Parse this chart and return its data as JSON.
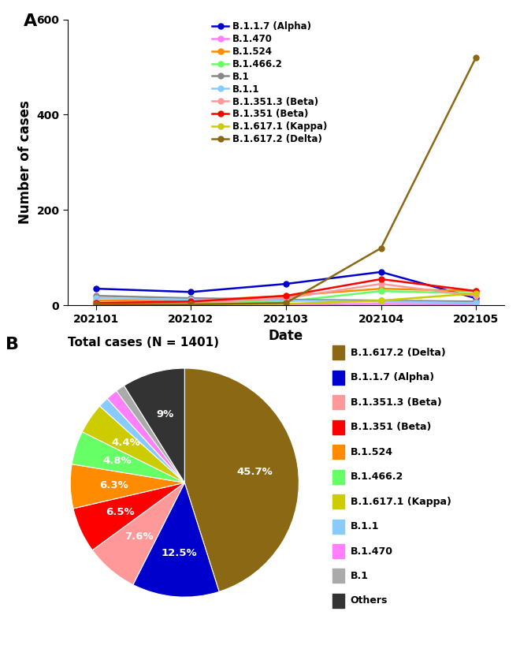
{
  "line_x": [
    1,
    2,
    3,
    4,
    5
  ],
  "line_x_labels": [
    "202101",
    "202102",
    "202103",
    "202104",
    "202105"
  ],
  "line_series": [
    {
      "label": "B.1.1.7 (Alpha)",
      "color": "#0000CC",
      "values": [
        35,
        28,
        45,
        70,
        15
      ]
    },
    {
      "label": "B.1.470",
      "color": "#FF80FF",
      "values": [
        5,
        3,
        2,
        3,
        2
      ]
    },
    {
      "label": "B.1.524",
      "color": "#FF8C00",
      "values": [
        10,
        10,
        20,
        35,
        30
      ]
    },
    {
      "label": "B.1.466.2",
      "color": "#66FF66",
      "values": [
        5,
        5,
        8,
        30,
        25
      ]
    },
    {
      "label": "B.1",
      "color": "#888888",
      "values": [
        20,
        15,
        12,
        10,
        8
      ]
    },
    {
      "label": "B.1.1",
      "color": "#88CCFF",
      "values": [
        15,
        12,
        10,
        8,
        5
      ]
    },
    {
      "label": "B.1.351.3 (Beta)",
      "color": "#FF9999",
      "values": [
        5,
        5,
        15,
        45,
        20
      ]
    },
    {
      "label": "B.1.351 (Beta)",
      "color": "#FF0000",
      "values": [
        5,
        8,
        20,
        55,
        30
      ]
    },
    {
      "label": "B.1.617.1 (Kappa)",
      "color": "#CCCC00",
      "values": [
        2,
        2,
        3,
        10,
        25
      ]
    },
    {
      "label": "B.1.617.2 (Delta)",
      "color": "#8B6914",
      "values": [
        2,
        2,
        5,
        120,
        520
      ]
    }
  ],
  "line_ylabel": "Number of cases",
  "line_xlabel": "Date",
  "line_ylim": [
    0,
    600
  ],
  "line_yticks": [
    0,
    200,
    400,
    600
  ],
  "pie_title": "Total cases (N = 1401)",
  "pie_slices": [
    {
      "label": "B.1.617.2 (Delta)",
      "pct": 45.7,
      "color": "#8B6914"
    },
    {
      "label": "B.1.1.7 (Alpha)",
      "pct": 12.5,
      "color": "#0000CC"
    },
    {
      "label": "B.1.351.3 (Beta)",
      "pct": 7.6,
      "color": "#FF9999"
    },
    {
      "label": "B.1.351 (Beta)",
      "pct": 6.5,
      "color": "#FF0000"
    },
    {
      "label": "B.1.524",
      "pct": 6.3,
      "color": "#FF8C00"
    },
    {
      "label": "B.1.466.2",
      "pct": 4.8,
      "color": "#66FF66"
    },
    {
      "label": "B.1.617.1 (Kappa)",
      "pct": 4.4,
      "color": "#CCCC00"
    },
    {
      "label": "B.1.1",
      "pct": 1.5,
      "color": "#88CCFF"
    },
    {
      "label": "B.1.470",
      "pct": 1.7,
      "color": "#FF80FF"
    },
    {
      "label": "B.1",
      "pct": 1.3,
      "color": "#AAAAAA"
    },
    {
      "label": "Others",
      "pct": 9.0,
      "color": "#333333"
    }
  ],
  "pie_label_pcts": [
    "45.7%",
    "12.5%",
    "7.6%",
    "6.5%",
    "6.3%",
    "4.8%",
    "4.4%",
    "",
    "",
    "",
    "9%"
  ],
  "panel_a_label": "A",
  "panel_b_label": "B"
}
